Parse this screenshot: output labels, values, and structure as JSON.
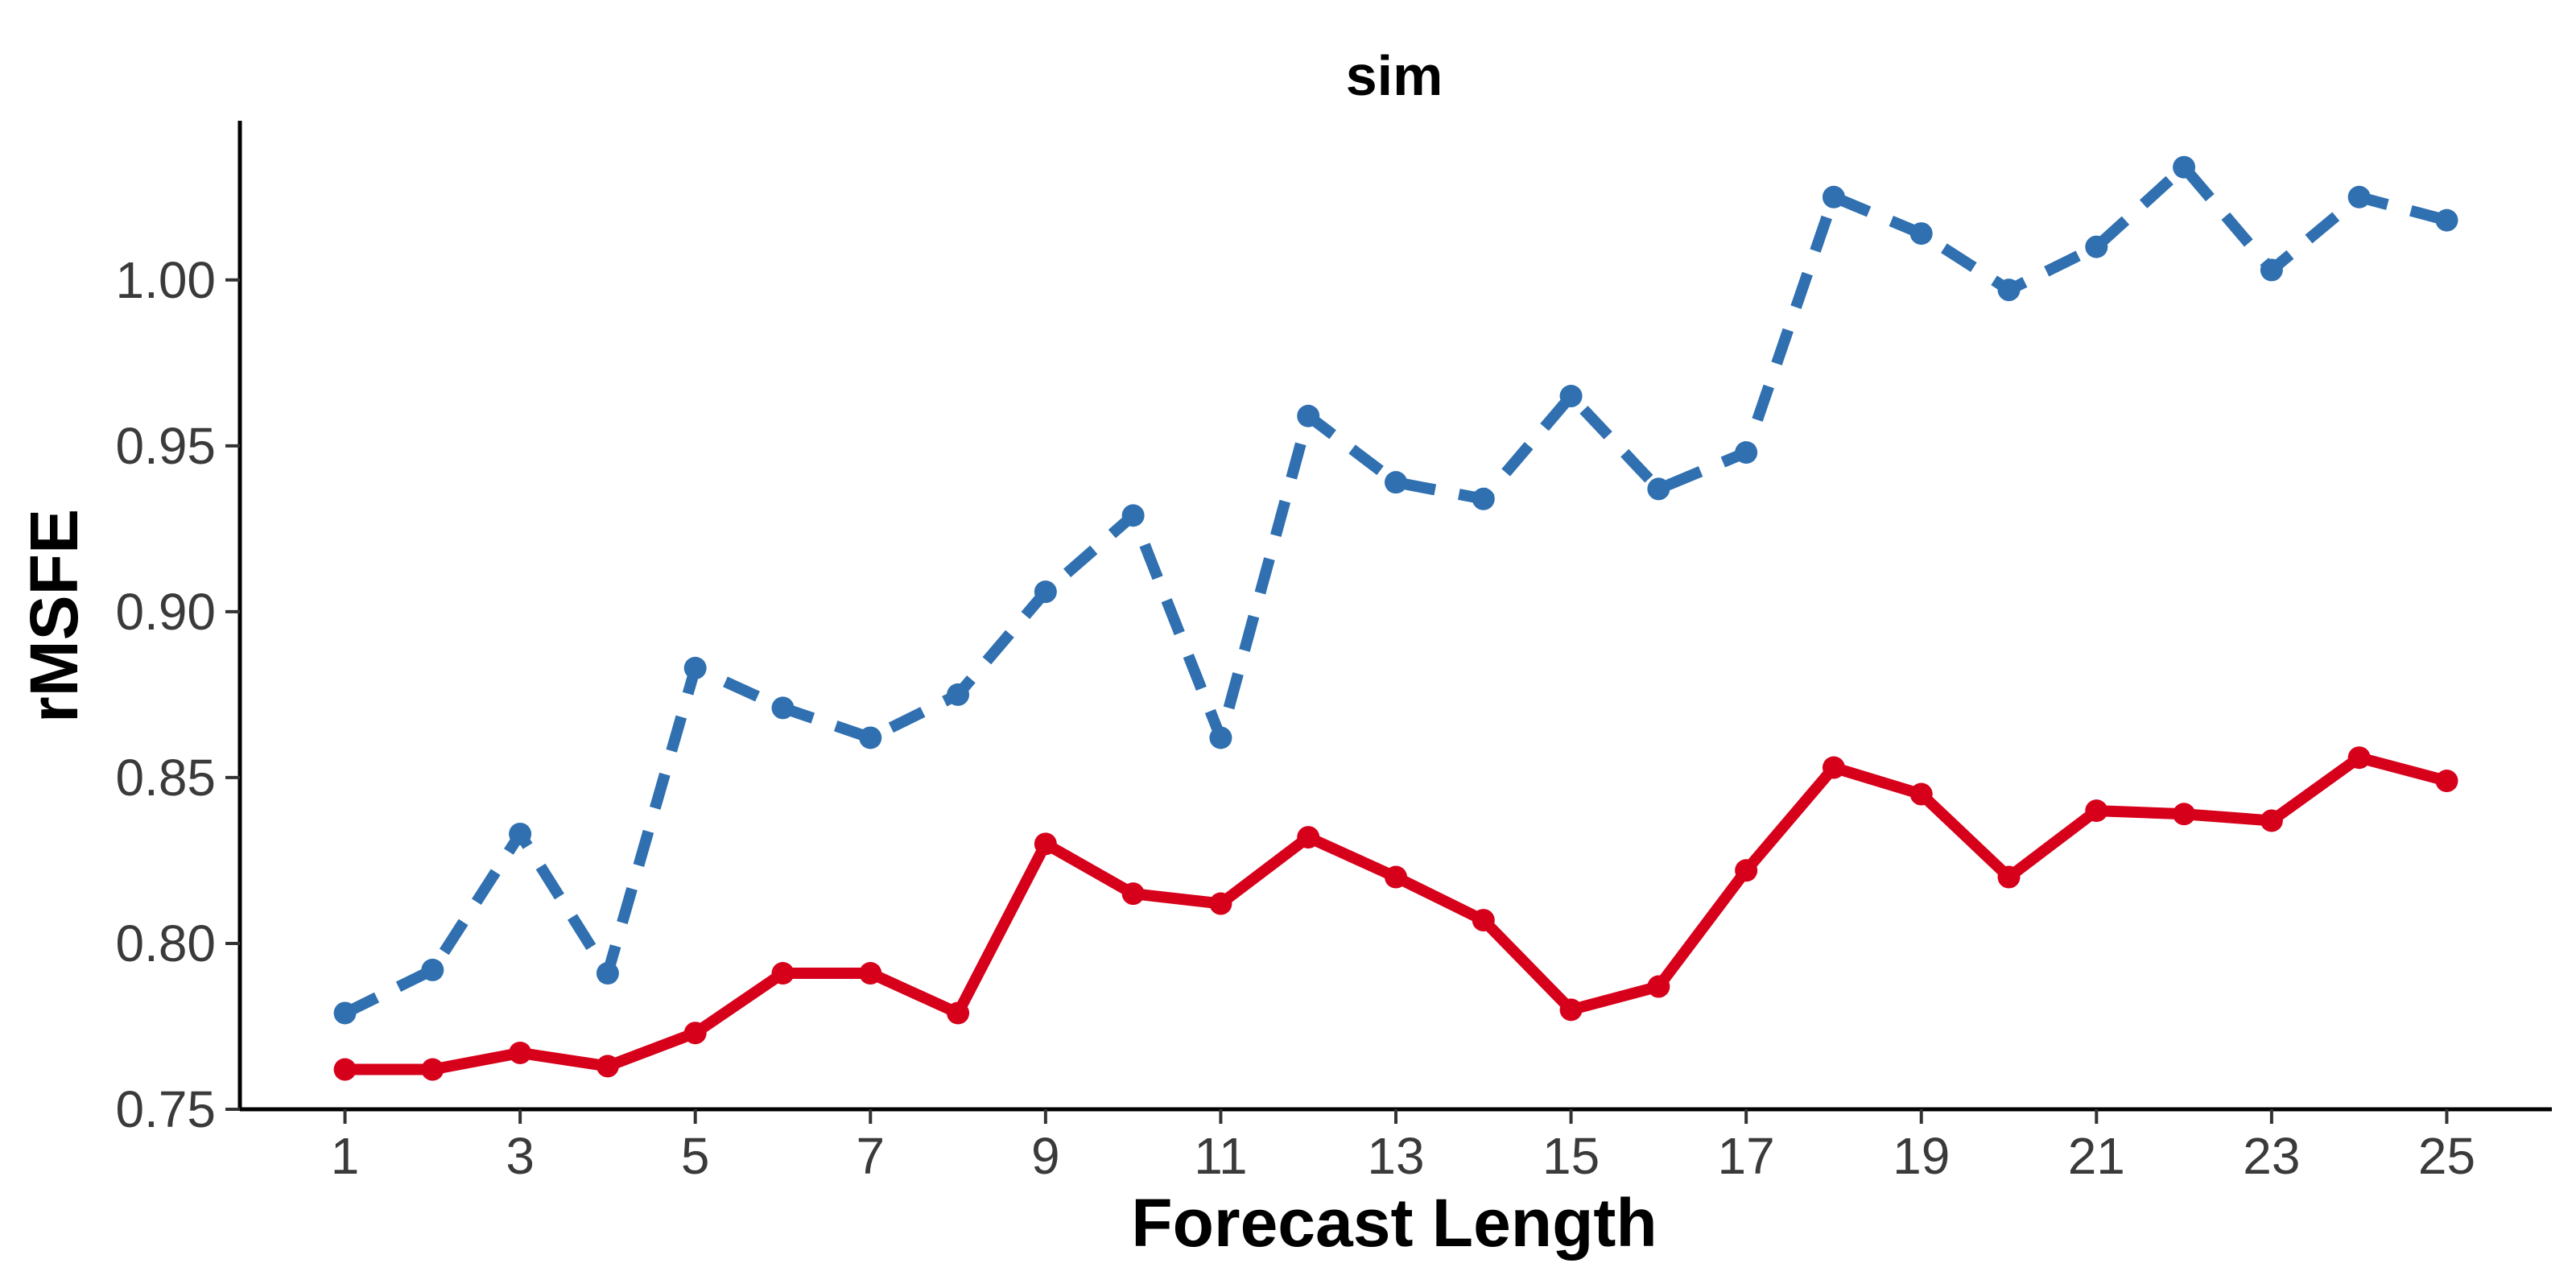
{
  "chart_data": {
    "type": "line",
    "title": "sim",
    "xlabel": "Forecast Length",
    "ylabel": "rMSFE",
    "x": [
      1,
      2,
      3,
      4,
      5,
      6,
      7,
      8,
      9,
      10,
      11,
      12,
      13,
      14,
      15,
      16,
      17,
      18,
      19,
      20,
      21,
      22,
      23,
      24,
      25
    ],
    "xticks": [
      1,
      3,
      5,
      7,
      9,
      11,
      13,
      15,
      17,
      19,
      21,
      23,
      25
    ],
    "xtick_labels": [
      "1",
      "3",
      "5",
      "7",
      "9",
      "11",
      "13",
      "15",
      "17",
      "19",
      "21",
      "23",
      "25"
    ],
    "yticks": [
      0.75,
      0.8,
      0.85,
      0.9,
      0.95,
      1.0
    ],
    "ytick_labels": [
      "0.75",
      "0.80",
      "0.85",
      "0.90",
      "0.95",
      "1.00"
    ],
    "xlim": [
      -0.2,
      26.2
    ],
    "ylim": [
      0.75,
      1.048
    ],
    "grid": false,
    "legend": "none",
    "series": [
      {
        "style": "dashed",
        "color": "#3070b0",
        "values": [
          0.779,
          0.792,
          0.833,
          0.791,
          0.883,
          0.871,
          0.862,
          0.875,
          0.906,
          0.929,
          0.862,
          0.959,
          0.939,
          0.934,
          0.965,
          0.937,
          0.948,
          1.025,
          1.014,
          0.997,
          1.01,
          1.034,
          1.003,
          1.025,
          1.018
        ]
      },
      {
        "style": "solid",
        "color": "#d7001a",
        "values": [
          0.762,
          0.762,
          0.767,
          0.763,
          0.773,
          0.791,
          0.791,
          0.779,
          0.83,
          0.815,
          0.812,
          0.832,
          0.82,
          0.807,
          0.78,
          0.787,
          0.822,
          0.853,
          0.845,
          0.82,
          0.84,
          0.839,
          0.837,
          0.856,
          0.849
        ]
      }
    ]
  }
}
